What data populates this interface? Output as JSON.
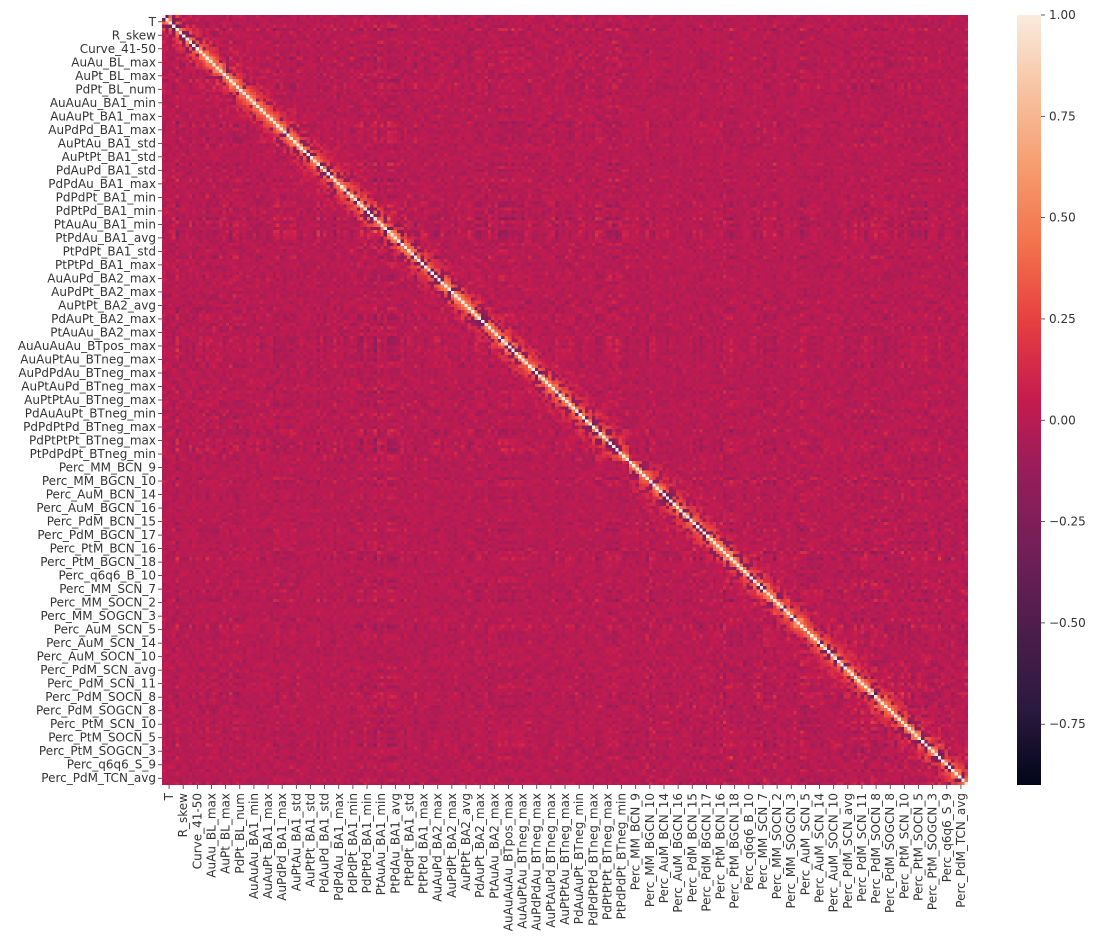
{
  "chart_data": {
    "type": "heatmap",
    "title": "",
    "xlabel": "",
    "ylabel": "",
    "labels": [
      "T",
      "R_skew",
      "Curve_41-50",
      "AuAu_BL_max",
      "AuPt_BL_max",
      "PdPt_BL_num",
      "AuAuAu_BA1_min",
      "AuAuPt_BA1_max",
      "AuPdPd_BA1_max",
      "AuPtAu_BA1_std",
      "AuPtPt_BA1_std",
      "PdAuPd_BA1_std",
      "PdPdAu_BA1_max",
      "PdPdPt_BA1_min",
      "PdPtPd_BA1_min",
      "PtAuAu_BA1_min",
      "PtPdAu_BA1_avg",
      "PtPdPt_BA1_std",
      "PtPtPd_BA1_max",
      "AuAuPd_BA2_max",
      "AuPdPt_BA2_max",
      "AuPtPt_BA2_avg",
      "PdAuPt_BA2_max",
      "PtAuAu_BA2_max",
      "AuAuAuAu_BTpos_max",
      "AuAuPtAu_BTneg_max",
      "AuPdPdAu_BTneg_max",
      "AuPtAuPd_BTneg_max",
      "AuPtPtAu_BTneg_max",
      "PdAuAuPt_BTneg_min",
      "PdPdPtPd_BTneg_max",
      "PdPtPtPt_BTneg_max",
      "PtPdPdPt_BTneg_min",
      "Perc_MM_BCN_9",
      "Perc_MM_BGCN_10",
      "Perc_AuM_BCN_14",
      "Perc_AuM_BGCN_16",
      "Perc_PdM_BCN_15",
      "Perc_PdM_BGCN_17",
      "Perc_PtM_BCN_16",
      "Perc_PtM_BGCN_18",
      "Perc_q6q6_B_10",
      "Perc_MM_SCN_7",
      "Perc_MM_SOCN_2",
      "Perc_MM_SOGCN_3",
      "Perc_AuM_SCN_5",
      "Perc_AuM_SCN_14",
      "Perc_AuM_SOCN_10",
      "Perc_PdM_SCN_avg",
      "Perc_PdM_SCN_11",
      "Perc_PdM_SOCN_8",
      "Perc_PdM_SOGCN_8",
      "Perc_PtM_SCN_10",
      "Perc_PtM_SOCN_5",
      "Perc_PtM_SOGCN_3",
      "Perc_q6q6_S_9",
      "Perc_PdM_TCN_avg"
    ],
    "y_labels": [
      "T",
      "R_skew",
      "Curve_41-50",
      "AuAu_BL_max",
      "AuPt_BL_max",
      "PdPt_BL_num",
      "AuAuAu_BA1_min",
      "AuAuPt_BA1_max",
      "AuPdPd_BA1_max",
      "AuPtAu_BA1_std",
      "AuPtPt_BA1_std",
      "PdAuPd_BA1_std",
      "PdPdAu_BA1_max",
      "PdPdPt_BA1_min",
      "PdPtPd_BA1_min",
      "PtAuAu_BA1_min",
      "PtPdAu_BA1_avg",
      "PtPdPt_BA1_std",
      "PtPtPd_BA1_max",
      "AuAuPd_BA2_max",
      "AuPdPt_BA2_max",
      "AuPtPt_BA2_avg",
      "PdAuPt_BA2_max",
      "PtAuAu_BA2_max",
      "AuAuAuAu_BTpos_max",
      "AuAuPtAu_BTneg_max",
      "AuPdPdAu_BTneg_max",
      "AuPtAuPd_BTneg_max",
      "AuPtPtAu_BTneg_max",
      "PdAuAuPt_BTneg_min",
      "PdPdPtPd_BTneg_max",
      "PdPtPtPt_BTneg_max",
      "PtPdPdPt_BTneg_min",
      "Perc_MM_BCN_9",
      "Perc_MM_BGCN_10",
      "Perc_AuM_BCN_14",
      "Perc_AuM_BGCN_16",
      "Perc_PdM_BCN_15",
      "Perc_PdM_BGCN_17",
      "Perc_PtM_BCN_16",
      "Perc_PtM_BGCN_18",
      "Perc_q6q6_B_10",
      "Perc_MM_SCN_7",
      "Perc_MM_SOCN_2",
      "Perc_MM_SOGCN_3",
      "Perc_AuM_SCN_5",
      "Perc_AuM_SCN_14",
      "Perc_AuM_SOCN_10",
      "Perc_PdM_SCN_avg",
      "Perc_PdM_SCN_11",
      "Perc_PdM_SOCN_8",
      "Perc_PdM_SOGCN_8",
      "Perc_PtM_SCN_10",
      "Perc_PtM_SOCN_5",
      "Perc_PtM_SOGCN_3",
      "Perc_q6q6_S_9",
      "Perc_PdM_TCN_avg"
    ],
    "diagonal_value": 1.0,
    "block_split_label": "Perc_MM_BCN_9",
    "typical_off_diagonal": 0.0,
    "value_range": [
      -0.9,
      1.0
    ],
    "colorbar": {
      "vmin": -0.9,
      "vmax": 1.0,
      "ticks": [
        1.0,
        0.75,
        0.5,
        0.25,
        0.0,
        -0.25,
        -0.5,
        -0.75
      ],
      "tick_labels": [
        "1.00",
        "0.75",
        "0.50",
        "0.25",
        "0.00",
        "−0.25",
        "−0.50",
        "−0.75"
      ],
      "colormap": "rocket",
      "stops": [
        "#03051a",
        "#2b1a3f",
        "#4c1d4b",
        "#701f57",
        "#941d5b",
        "#c51b4f",
        "#e63e40",
        "#f3714b",
        "#f69b6d",
        "#f7c2a0",
        "#faebdd"
      ]
    },
    "grid": false,
    "legend": "colorbar-right"
  }
}
